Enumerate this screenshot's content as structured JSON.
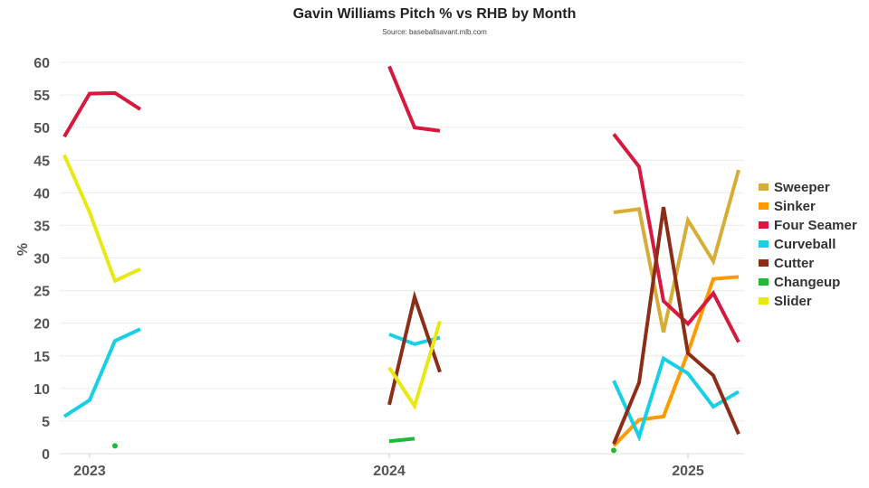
{
  "chart_data": {
    "type": "line",
    "title": "Gavin Williams Pitch % vs RHB by Month",
    "subtitle": "Source: baseballsavant.mlb.com",
    "xlabel": "",
    "ylabel": "%",
    "ylim": [
      0,
      60
    ],
    "yticks": [
      0,
      5,
      10,
      15,
      20,
      25,
      30,
      35,
      40,
      45,
      50,
      55,
      60
    ],
    "xticks": [
      "2023",
      "2024",
      "2025"
    ],
    "grid": true,
    "legend_position": "right",
    "months": {
      "2023": [
        "2023-06",
        "2023-07",
        "2023-08",
        "2023-09"
      ],
      "2024": [
        "2024-07",
        "2024-08",
        "2024-09"
      ],
      "2025": [
        "2025-04",
        "2025-05",
        "2025-06",
        "2025-07",
        "2025-08",
        "2025-09"
      ]
    },
    "series": [
      {
        "name": "Sweeper",
        "color": "#d6ad35",
        "data": {
          "2025": [
            37.0,
            37.5,
            18.6,
            35.8,
            29.5,
            43.5
          ]
        }
      },
      {
        "name": "Sinker",
        "color": "#ff9a00",
        "data": {
          "2025": [
            1.2,
            5.2,
            5.7,
            15.5,
            26.8,
            27.1
          ]
        }
      },
      {
        "name": "Four Seamer",
        "color": "#d6193f",
        "data": {
          "2023": [
            48.6,
            55.2,
            55.3,
            52.8
          ],
          "2024": [
            59.4,
            50.0,
            49.5
          ],
          "2025": [
            49.0,
            44.0,
            23.4,
            19.9,
            24.6,
            17.1
          ]
        }
      },
      {
        "name": "Curveball",
        "color": "#17d0e6",
        "data": {
          "2023": [
            5.7,
            8.2,
            17.3,
            19.1
          ],
          "2024": [
            18.3,
            16.8,
            17.8
          ],
          "2025": [
            11.2,
            2.6,
            14.6,
            12.3,
            7.2,
            9.5
          ]
        }
      },
      {
        "name": "Cutter",
        "color": "#8c2d17",
        "data": {
          "2024": [
            7.5,
            24.0,
            12.5
          ],
          "2025": [
            1.5,
            10.9,
            37.8,
            15.4,
            12.0,
            3.0
          ]
        }
      },
      {
        "name": "Changeup",
        "color": "#1dbb34",
        "data": {
          "2023": [
            null,
            null,
            1.2,
            null
          ],
          "2024": [
            1.9,
            2.3,
            null
          ],
          "2025": [
            0.5,
            null,
            null,
            null,
            null,
            null
          ]
        }
      },
      {
        "name": "Slider",
        "color": "#e8e814",
        "data": {
          "2023": [
            45.8,
            37.0,
            26.5,
            28.3
          ],
          "2024": [
            13.2,
            7.3,
            20.3
          ]
        }
      }
    ]
  }
}
